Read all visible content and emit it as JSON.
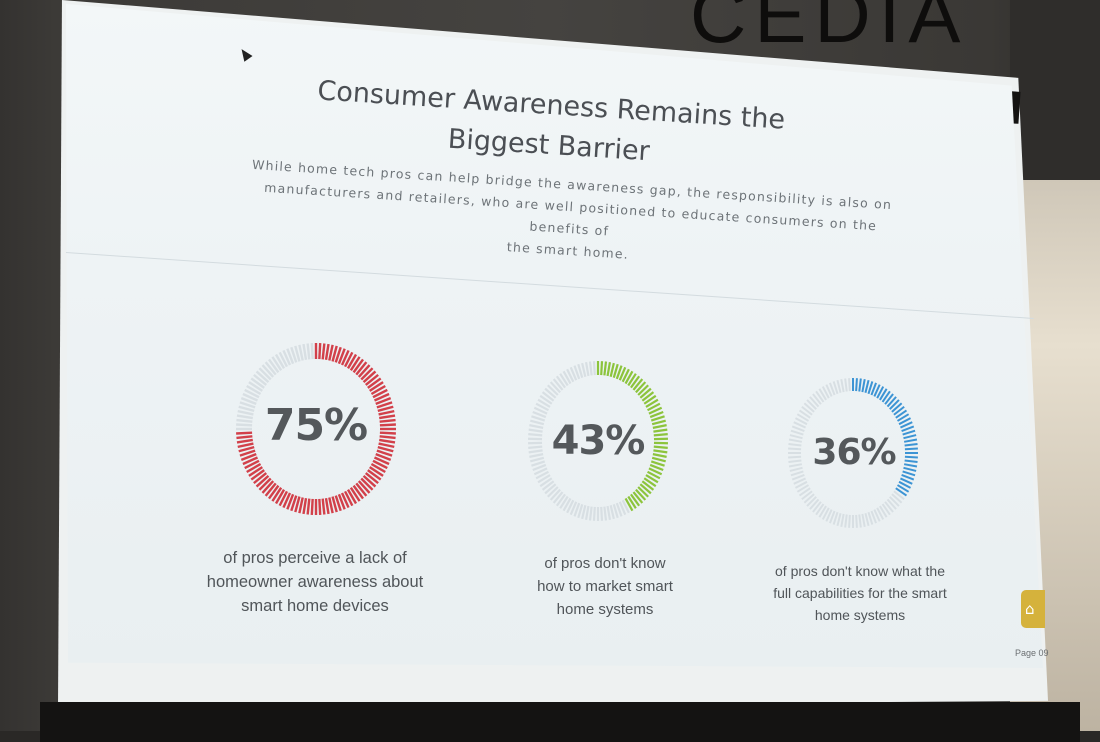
{
  "wall": {
    "brand_top": "CEDIA"
  },
  "slide": {
    "title_line1": "Consumer Awareness Remains the",
    "title_line2": "Biggest Barrier",
    "subtitle_line1": "While home tech pros can help bridge the awareness gap, the responsibility is also on",
    "subtitle_line2": "manufacturers and retailers, who are well positioned to educate consumers on the benefits of",
    "subtitle_line3": "the smart home.",
    "stats": [
      {
        "value": "75%",
        "fraction": 0.75,
        "color": "#d2404a",
        "caption": [
          "of pros perceive a lack of",
          "homeowner awareness about",
          "smart home devices"
        ]
      },
      {
        "value": "43%",
        "fraction": 0.43,
        "color": "#8cc43c",
        "caption": [
          "of pros don't know",
          "how to market smart",
          "home systems"
        ]
      },
      {
        "value": "36%",
        "fraction": 0.36,
        "color": "#3c94d4",
        "caption": [
          "of pros don't know what the",
          "full capabilities for the smart",
          "home systems"
        ]
      }
    ],
    "track_color": "#d8dfe3",
    "page_label": "Page 09",
    "home_icon": "home-icon"
  }
}
